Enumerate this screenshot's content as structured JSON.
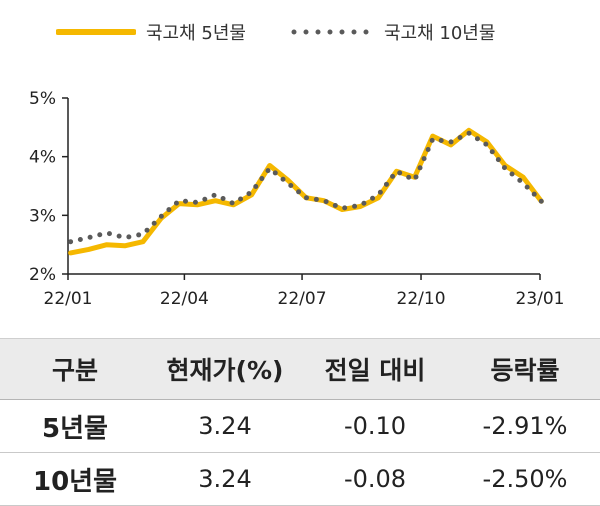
{
  "legend": [
    {
      "name": "국고채 5년물",
      "style": "solid",
      "color": "#F5B800"
    },
    {
      "name": "국고채 10년물",
      "style": "dotted",
      "color": "#5A5A5A"
    }
  ],
  "chart_data": {
    "type": "line",
    "x_start": "22/01",
    "x_end": "23/01",
    "xticks": [
      "22/01",
      "22/04",
      "22/07",
      "22/10",
      "23/01"
    ],
    "yticks": [
      "5%",
      "4%",
      "3%",
      "2%"
    ],
    "ylim": [
      2,
      5
    ],
    "grid": false,
    "series": [
      {
        "name": "국고채 5년물",
        "color": "#F5B800",
        "style": "solid",
        "x": [
          "22/01/03",
          "22/01/17",
          "22/01/31",
          "22/02/14",
          "22/02/28",
          "22/03/14",
          "22/03/28",
          "22/04/11",
          "22/04/25",
          "22/05/09",
          "22/05/23",
          "22/06/06",
          "22/06/20",
          "22/07/04",
          "22/07/18",
          "22/08/01",
          "22/08/15",
          "22/08/29",
          "22/09/12",
          "22/09/26",
          "22/10/10",
          "22/10/24",
          "22/11/07",
          "22/11/21",
          "22/12/05",
          "22/12/19",
          "23/01/02"
        ],
        "values": [
          2.36,
          2.42,
          2.5,
          2.48,
          2.55,
          2.95,
          3.2,
          3.18,
          3.25,
          3.18,
          3.35,
          3.85,
          3.6,
          3.3,
          3.25,
          3.1,
          3.15,
          3.3,
          3.75,
          3.65,
          4.35,
          4.2,
          4.45,
          4.25,
          3.85,
          3.65,
          3.24
        ]
      },
      {
        "name": "국고채 10년물",
        "color": "#5A5A5A",
        "style": "dotted",
        "x": [
          "22/01/03",
          "22/01/17",
          "22/01/31",
          "22/02/14",
          "22/02/28",
          "22/03/14",
          "22/03/28",
          "22/04/11",
          "22/04/25",
          "22/05/09",
          "22/05/23",
          "22/06/06",
          "22/06/20",
          "22/07/04",
          "22/07/18",
          "22/08/01",
          "22/08/15",
          "22/08/29",
          "22/09/12",
          "22/09/26",
          "22/10/10",
          "22/10/24",
          "22/11/07",
          "22/11/21",
          "22/12/05",
          "22/12/19",
          "23/01/02"
        ],
        "values": [
          2.55,
          2.62,
          2.7,
          2.62,
          2.68,
          2.98,
          3.25,
          3.22,
          3.35,
          3.2,
          3.4,
          3.8,
          3.55,
          3.3,
          3.25,
          3.12,
          3.17,
          3.35,
          3.75,
          3.6,
          4.3,
          4.25,
          4.4,
          4.2,
          3.8,
          3.55,
          3.24
        ]
      }
    ]
  },
  "table": {
    "headers": [
      "구분",
      "현재가(%)",
      "전일 대비",
      "등락률"
    ],
    "rows": [
      [
        "5년물",
        "3.24",
        "-0.10",
        "-2.91%"
      ],
      [
        "10년물",
        "3.24",
        "-0.08",
        "-2.50%"
      ]
    ]
  }
}
